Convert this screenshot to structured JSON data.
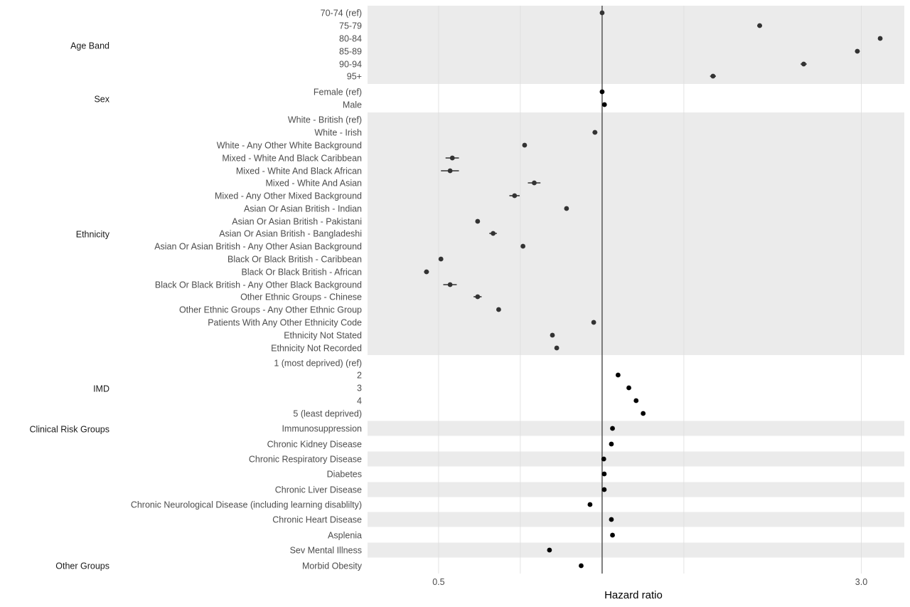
{
  "chart_data": {
    "type": "scatter",
    "subtype": "forest-plot",
    "xlabel": "Hazard ratio",
    "x_scale": "log",
    "xlim": [
      0.37,
      3.6
    ],
    "x_ticks": [
      {
        "value": 0.5,
        "label": "0.5"
      },
      {
        "value": 3.0,
        "label": "3.0"
      }
    ],
    "x_minor_gridlines": [
      0.5,
      0.707,
      1.0,
      1.414,
      3.0
    ],
    "reference_line": 1.0,
    "grid": true,
    "colors": {
      "band": "#ebebeb",
      "point_shaded": "#333333",
      "point_unshaded": "#000000",
      "refline": "#555555",
      "grid": "#dcdcdc"
    },
    "groups": [
      {
        "name": "Age Band",
        "rows": [
          {
            "label": "70-74 (ref)",
            "hr": 1.0,
            "lo": 1.0,
            "hi": 1.0
          },
          {
            "label": "75-79",
            "hr": 1.95,
            "lo": 1.93,
            "hi": 1.97
          },
          {
            "label": "80-84",
            "hr": 3.25,
            "lo": 3.22,
            "hi": 3.28
          },
          {
            "label": "85-89",
            "hr": 2.95,
            "lo": 2.92,
            "hi": 2.98
          },
          {
            "label": "90-94",
            "hr": 2.35,
            "lo": 2.32,
            "hi": 2.38
          },
          {
            "label": "95+",
            "hr": 1.6,
            "lo": 1.58,
            "hi": 1.62
          }
        ]
      },
      {
        "name": "Sex",
        "rows": [
          {
            "label": "Female (ref)",
            "hr": 1.0,
            "lo": 1.0,
            "hi": 1.0
          },
          {
            "label": "Male",
            "hr": 1.01,
            "lo": 1.0,
            "hi": 1.02
          }
        ]
      },
      {
        "name": "Ethnicity",
        "rows": [
          {
            "label": "White - British (ref)",
            "hr": null,
            "lo": null,
            "hi": null
          },
          {
            "label": "White - Irish",
            "hr": 0.97,
            "lo": 0.96,
            "hi": 0.98
          },
          {
            "label": "White - Any Other White Background",
            "hr": 0.72,
            "lo": 0.715,
            "hi": 0.725
          },
          {
            "label": "Mixed - White And Black Caribbean",
            "hr": 0.53,
            "lo": 0.515,
            "hi": 0.545
          },
          {
            "label": "Mixed - White And Black African",
            "hr": 0.525,
            "lo": 0.505,
            "hi": 0.545
          },
          {
            "label": "Mixed - White And Asian",
            "hr": 0.75,
            "lo": 0.73,
            "hi": 0.77
          },
          {
            "label": "Mixed - Any Other Mixed Background",
            "hr": 0.69,
            "lo": 0.675,
            "hi": 0.705
          },
          {
            "label": "Asian Or Asian British - Indian",
            "hr": 0.86,
            "lo": 0.855,
            "hi": 0.865
          },
          {
            "label": "Asian Or Asian British - Pakistani",
            "hr": 0.59,
            "lo": 0.585,
            "hi": 0.595
          },
          {
            "label": "Asian Or Asian British - Bangladeshi",
            "hr": 0.63,
            "lo": 0.62,
            "hi": 0.64
          },
          {
            "label": "Asian Or Asian British - Any Other Asian Background",
            "hr": 0.715,
            "lo": 0.71,
            "hi": 0.72
          },
          {
            "label": "Black Or Black British - Caribbean",
            "hr": 0.505,
            "lo": 0.5,
            "hi": 0.51
          },
          {
            "label": "Black Or Black British - African",
            "hr": 0.475,
            "lo": 0.47,
            "hi": 0.48
          },
          {
            "label": "Black Or Black British - Any Other Black Background",
            "hr": 0.525,
            "lo": 0.51,
            "hi": 0.54
          },
          {
            "label": "Other Ethnic Groups - Chinese",
            "hr": 0.59,
            "lo": 0.58,
            "hi": 0.6
          },
          {
            "label": "Other Ethnic Groups - Any Other Ethnic Group",
            "hr": 0.645,
            "lo": 0.64,
            "hi": 0.65
          },
          {
            "label": "Patients With Any Other Ethnicity Code",
            "hr": 0.965,
            "lo": 0.96,
            "hi": 0.97
          },
          {
            "label": "Ethnicity Not Stated",
            "hr": 0.81,
            "lo": 0.805,
            "hi": 0.815
          },
          {
            "label": "Ethnicity Not Recorded",
            "hr": 0.825,
            "lo": 0.82,
            "hi": 0.83
          }
        ]
      },
      {
        "name": "IMD",
        "rows": [
          {
            "label": "1 (most deprived) (ref)",
            "hr": null,
            "lo": null,
            "hi": null
          },
          {
            "label": "2",
            "hr": 1.07,
            "lo": 1.065,
            "hi": 1.075
          },
          {
            "label": "3",
            "hr": 1.12,
            "lo": 1.115,
            "hi": 1.125
          },
          {
            "label": "4",
            "hr": 1.155,
            "lo": 1.15,
            "hi": 1.16
          },
          {
            "label": "5 (least deprived)",
            "hr": 1.19,
            "lo": 1.185,
            "hi": 1.195
          }
        ]
      },
      {
        "name": "Clinical Risk Groups",
        "rows": [
          {
            "label": "Immunosuppression",
            "hr": 1.045,
            "lo": 1.04,
            "hi": 1.05
          },
          {
            "label": "Chronic Kidney Disease",
            "hr": 1.04,
            "lo": 1.035,
            "hi": 1.045
          },
          {
            "label": "Chronic Respiratory Disease",
            "hr": 1.007,
            "lo": 1.003,
            "hi": 1.011
          },
          {
            "label": "Diabetes",
            "hr": 1.009,
            "lo": 1.005,
            "hi": 1.013
          },
          {
            "label": "Chronic Liver Disease",
            "hr": 1.009,
            "lo": 1.003,
            "hi": 1.015
          },
          {
            "label": "Chronic Neurological Disease (including learning disablilty)",
            "hr": 0.95,
            "lo": 0.945,
            "hi": 0.955
          },
          {
            "label": "Chronic Heart Disease",
            "hr": 1.04,
            "lo": 1.035,
            "hi": 1.045
          },
          {
            "label": "Asplenia",
            "hr": 1.045,
            "lo": 1.04,
            "hi": 1.05
          }
        ]
      },
      {
        "name": "Other Groups",
        "rows": [
          {
            "label": "Sev Mental Illness",
            "hr": 0.8,
            "lo": 0.795,
            "hi": 0.805
          },
          {
            "label": "Morbid Obesity",
            "hr": 0.915,
            "lo": 0.91,
            "hi": 0.92
          }
        ]
      }
    ]
  }
}
